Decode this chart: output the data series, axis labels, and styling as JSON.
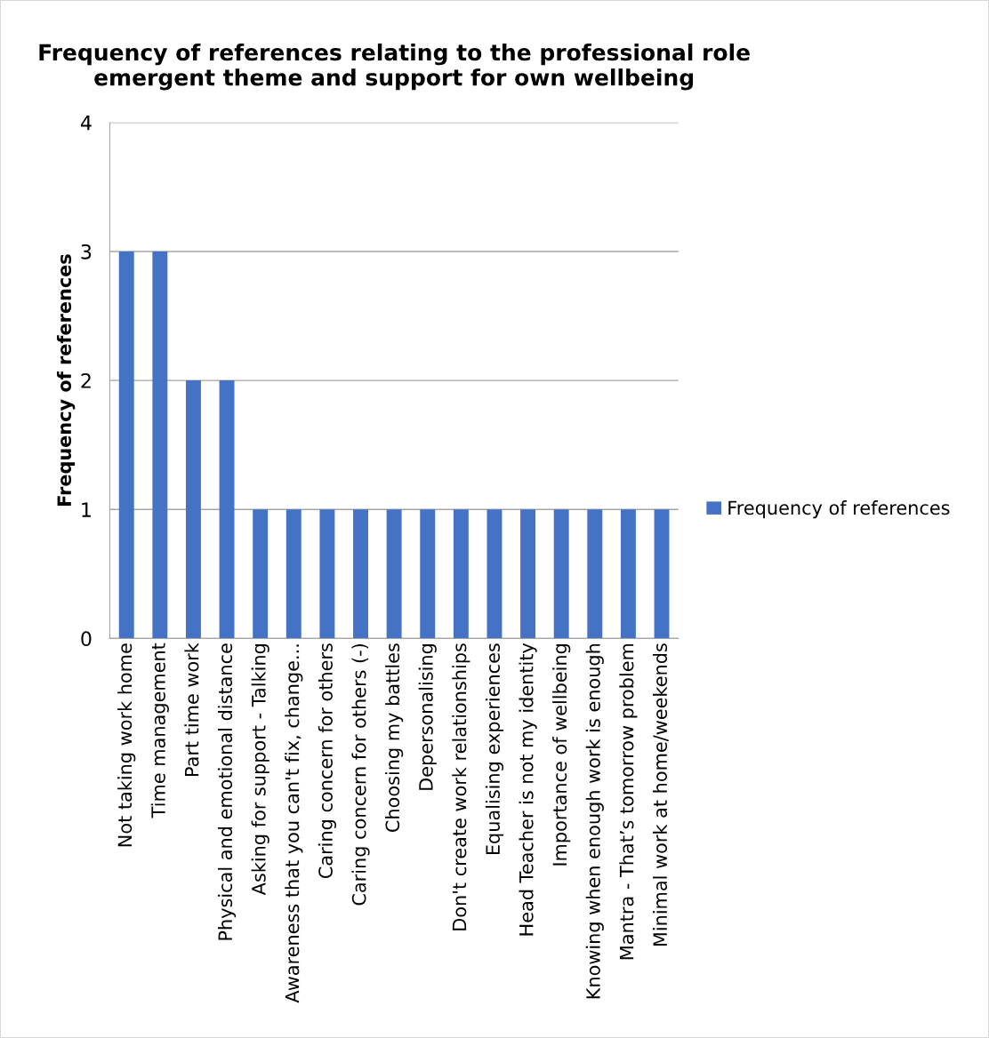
{
  "chart_data": {
    "type": "bar",
    "title": "Frequency of references relating to the professional role\nemergent theme and support for own wellbeing",
    "ylabel": "Frequency of references",
    "categories": [
      "Not taking work home",
      "Time management",
      "Part time work",
      "Physical and emotional distance",
      "Asking for support - Talking",
      "Awareness that you can't fix, change...",
      "Caring concern for others",
      "Caring concern for others (-)",
      "Choosing my battles",
      "Depersonalising",
      "Don't create work relationships",
      "Equalising experiences",
      "Head Teacher is not my identity",
      "Importance of wellbeing",
      "Knowing when enough work is enough",
      "Mantra - That’s tomorrow problem",
      "Minimal work at home/weekends"
    ],
    "series": [
      {
        "name": "Frequency of references",
        "color": "#4472c4",
        "values": [
          3,
          3,
          2,
          2,
          1,
          1,
          1,
          1,
          1,
          1,
          1,
          1,
          1,
          1,
          1,
          1,
          1
        ]
      }
    ],
    "ylim": [
      0,
      4
    ],
    "yticks": [
      0,
      1,
      2,
      3,
      4
    ],
    "grid": "y",
    "legend": "right"
  }
}
